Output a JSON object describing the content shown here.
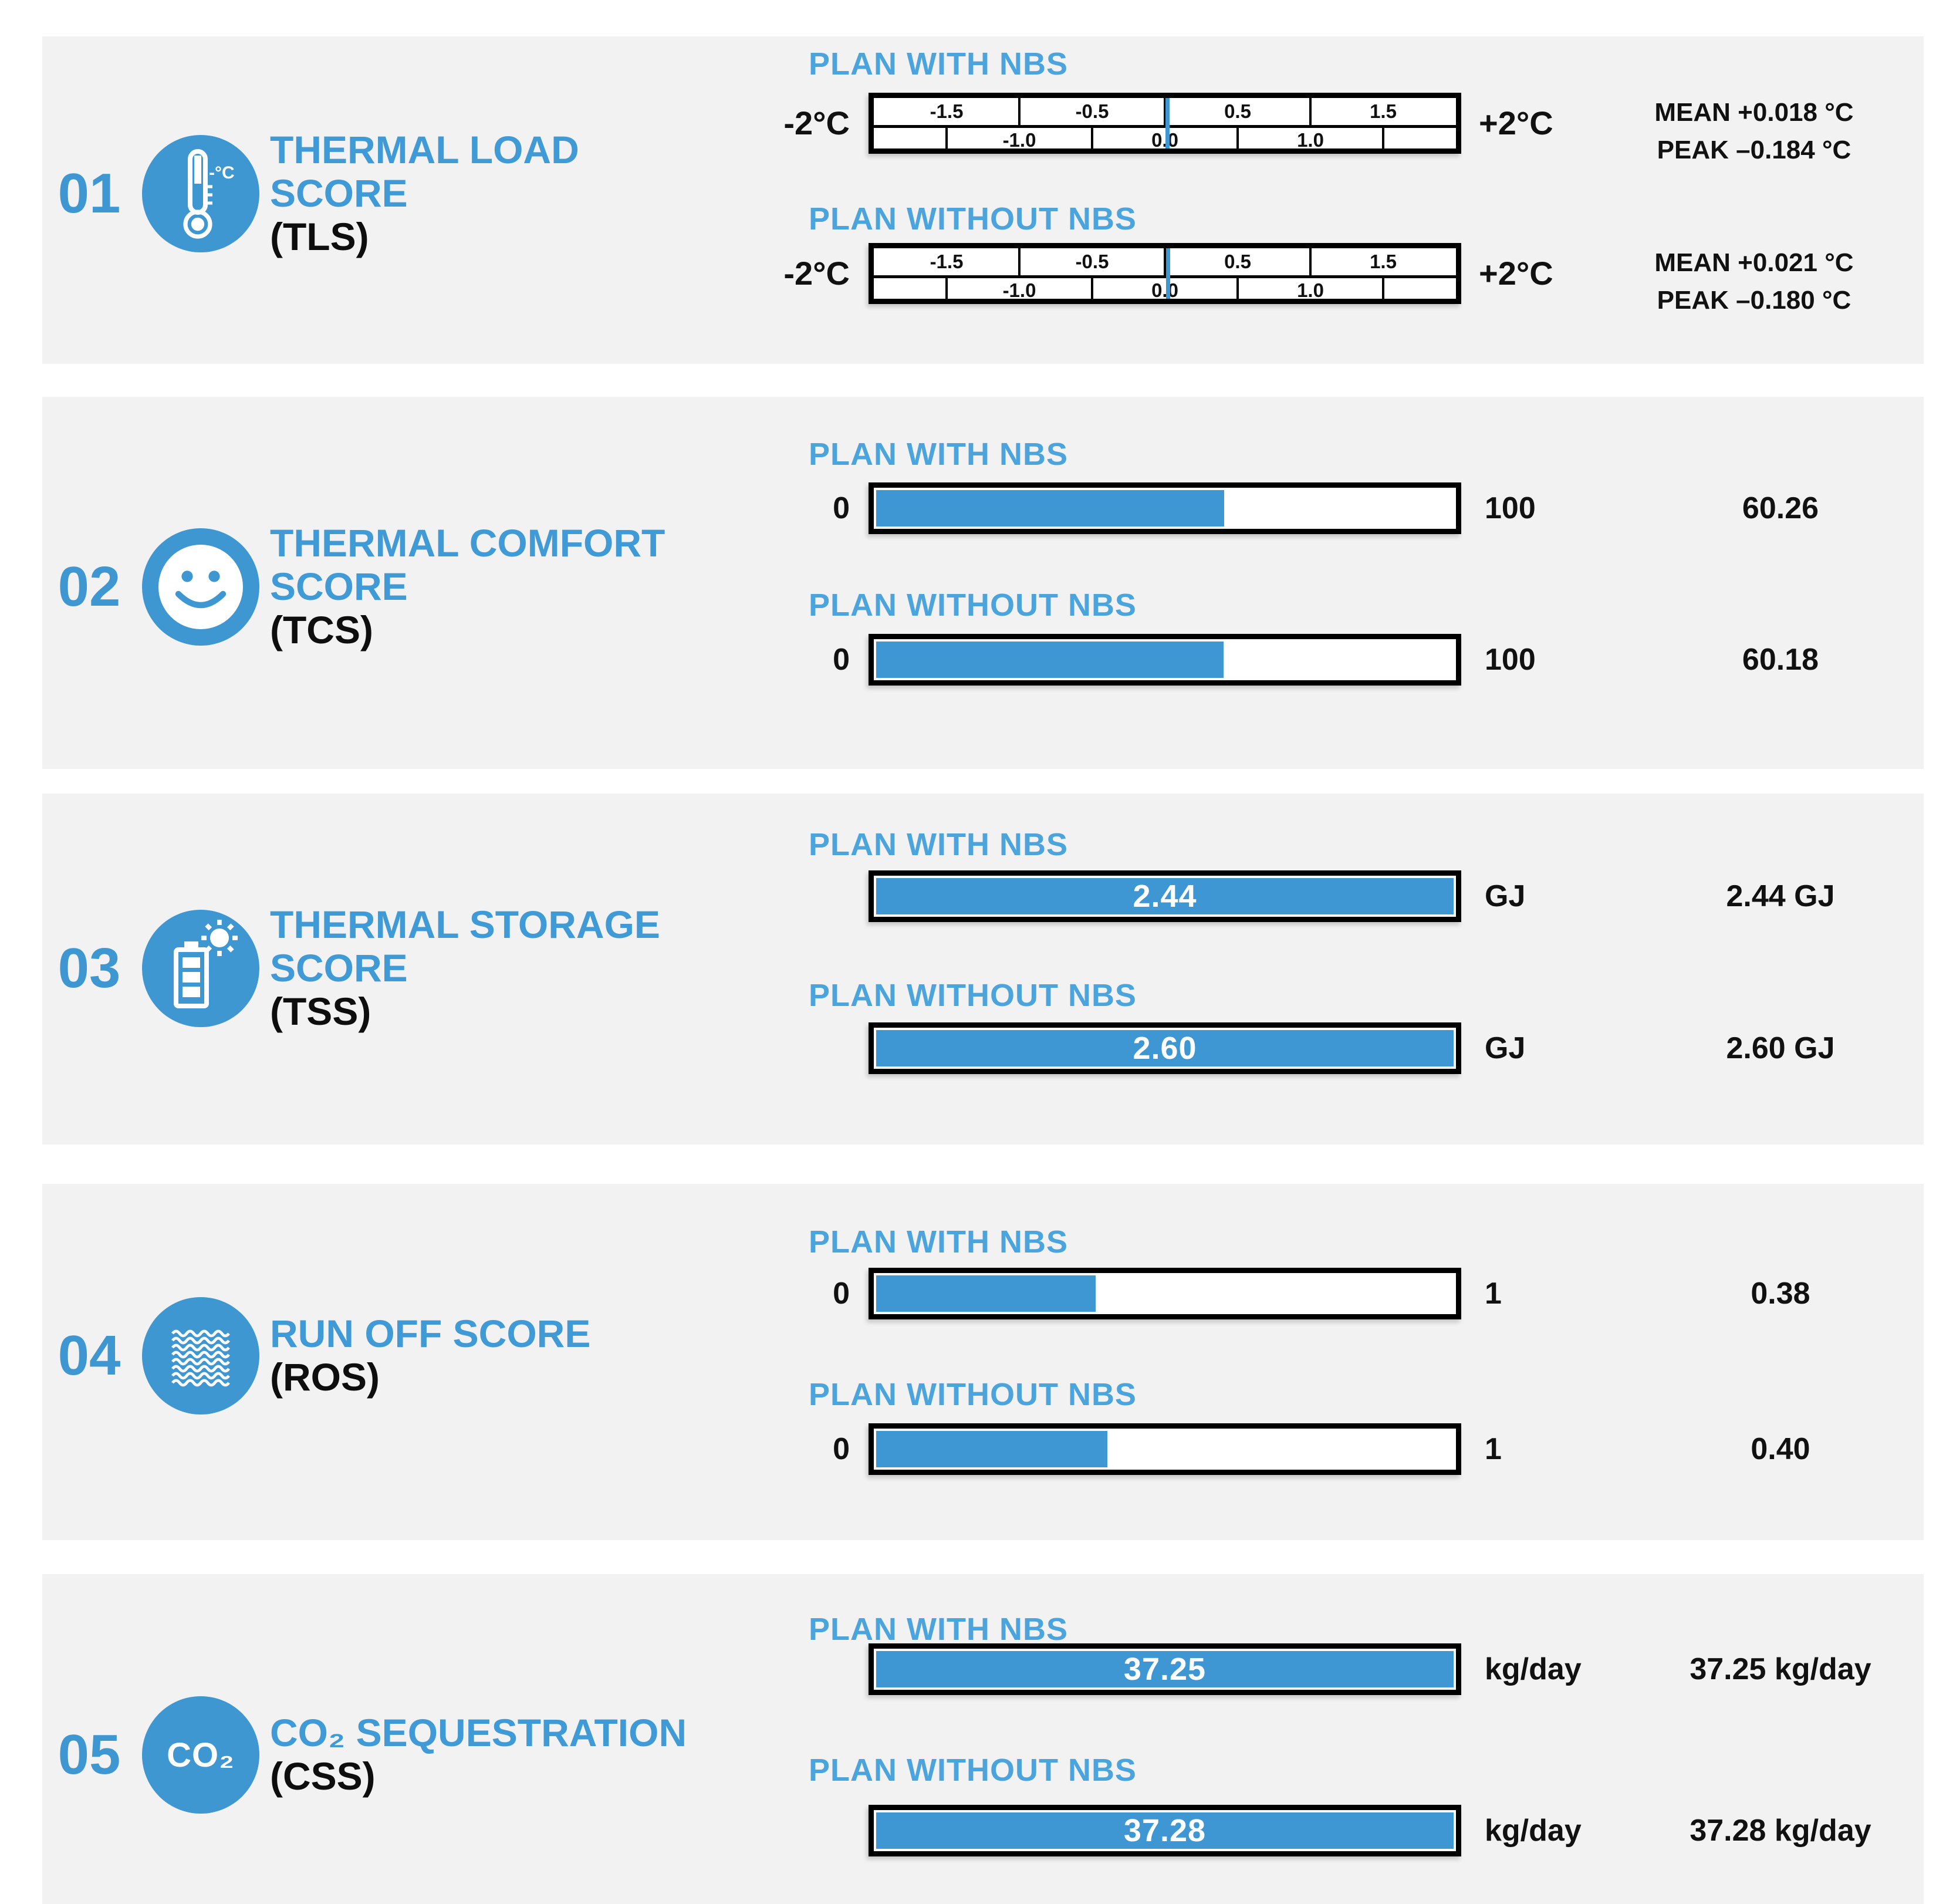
{
  "colors": {
    "accent": "#3E97D1",
    "bar_fill": "#3E97D2",
    "label_blue": "#4BA4DC",
    "section_bg": "#F2F2F2",
    "bar_border": "#000000",
    "text_dark": "#111111"
  },
  "labels": {
    "plan_with": "PLAN WITH NBS",
    "plan_without": "PLAN WITHOUT NBS"
  },
  "sections": [
    {
      "number": "01",
      "title_lines": [
        "THERMAL LOAD",
        "SCORE"
      ],
      "abbr": "(TLS)",
      "icon": "thermometer-icon",
      "gauge": {
        "min_label": "-2°C",
        "max_label": "+2°C",
        "top_ticks": [
          "-1.5",
          "-0.5",
          "0.5",
          "1.5"
        ],
        "bottom_ticks": [
          "-1.0",
          "0.0",
          "1.0"
        ],
        "with": {
          "marker_pct": 50.45,
          "mean": "MEAN +0.018 °C",
          "peak": "PEAK –0.184 °C"
        },
        "without": {
          "marker_pct": 50.53,
          "mean": "MEAN +0.021 °C",
          "peak": "PEAK –0.180 °C"
        }
      }
    },
    {
      "number": "02",
      "title_lines": [
        "THERMAL COMFORT",
        "SCORE"
      ],
      "abbr": "(TCS)",
      "icon": "smiley-icon",
      "bars": {
        "min": "0",
        "max": "100",
        "with": {
          "fill_pct": 60.26,
          "value": "60.26"
        },
        "without": {
          "fill_pct": 60.18,
          "value": "60.18"
        }
      }
    },
    {
      "number": "03",
      "title_lines": [
        "THERMAL STORAGE",
        "SCORE"
      ],
      "abbr": "(TSS)",
      "icon": "battery-sun-icon",
      "bars": {
        "unit": "GJ",
        "with": {
          "fill_pct": 100,
          "bar_text": "2.44",
          "value": "2.44 GJ"
        },
        "without": {
          "fill_pct": 100,
          "bar_text": "2.60",
          "value": "2.60 GJ"
        }
      }
    },
    {
      "number": "04",
      "title_lines": [
        "RUN OFF SCORE"
      ],
      "abbr": "(ROS)",
      "icon": "waves-icon",
      "bars": {
        "min": "0",
        "max": "1",
        "with": {
          "fill_pct": 38,
          "value": "0.38"
        },
        "without": {
          "fill_pct": 40,
          "value": "0.40"
        }
      }
    },
    {
      "number": "05",
      "title_lines": [
        "CO₂ SEQUESTRATION"
      ],
      "abbr": "(CSS)",
      "icon": "co2-icon",
      "icon_text": "CO₂",
      "bars": {
        "unit": "kg/day",
        "with": {
          "fill_pct": 100,
          "bar_text": "37.25",
          "value": "37.25 kg/day"
        },
        "without": {
          "fill_pct": 100,
          "bar_text": "37.28",
          "value": "37.28 kg/day"
        }
      }
    }
  ],
  "chart_data": [
    {
      "type": "bar",
      "indicator": "THERMAL LOAD SCORE (TLS)",
      "unit": "°C",
      "axis_range": [
        -2,
        2
      ],
      "axis_ticks": [
        -1.5,
        -1.0,
        -0.5,
        0.0,
        0.5,
        1.0,
        1.5
      ],
      "series": [
        {
          "name": "PLAN WITH NBS",
          "mean": 0.018,
          "peak": -0.184
        },
        {
          "name": "PLAN WITHOUT NBS",
          "mean": 0.021,
          "peak": -0.18
        }
      ]
    },
    {
      "type": "bar",
      "indicator": "THERMAL COMFORT SCORE (TCS)",
      "axis_range": [
        0,
        100
      ],
      "series": [
        {
          "name": "PLAN WITH NBS",
          "value": 60.26
        },
        {
          "name": "PLAN WITHOUT NBS",
          "value": 60.18
        }
      ]
    },
    {
      "type": "bar",
      "indicator": "THERMAL STORAGE SCORE (TSS)",
      "unit": "GJ",
      "series": [
        {
          "name": "PLAN WITH NBS",
          "value": 2.44
        },
        {
          "name": "PLAN WITHOUT NBS",
          "value": 2.6
        }
      ]
    },
    {
      "type": "bar",
      "indicator": "RUN OFF SCORE (ROS)",
      "axis_range": [
        0,
        1
      ],
      "series": [
        {
          "name": "PLAN WITH NBS",
          "value": 0.38
        },
        {
          "name": "PLAN WITHOUT NBS",
          "value": 0.4
        }
      ]
    },
    {
      "type": "bar",
      "indicator": "CO₂ SEQUESTRATION (CSS)",
      "unit": "kg/day",
      "series": [
        {
          "name": "PLAN WITH NBS",
          "value": 37.25
        },
        {
          "name": "PLAN WITHOUT NBS",
          "value": 37.28
        }
      ]
    }
  ]
}
